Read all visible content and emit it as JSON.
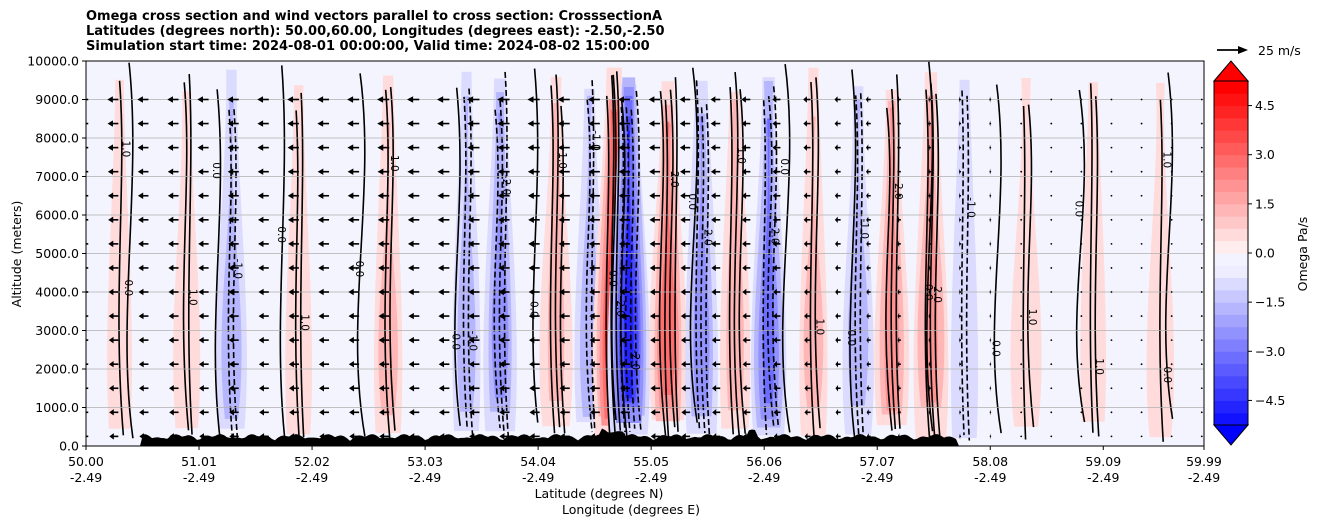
{
  "chart_data": {
    "type": "contour_cross_section",
    "title_lines": [
      "Omega cross section and wind vectors parallel to cross section: CrosssectionA",
      "Latitudes (degrees north): 50.00,60.00, Longitudes (degrees east): -2.50,-2.50",
      "Simulation start time: 2024-08-01 00:00:00, Valid time: 2024-08-02 15:00:00"
    ],
    "ylabel": "Altitude (meters)",
    "xlabel_line1": "Latitude (degrees N)",
    "xlabel_line2": "Longitude (degrees E)",
    "ylim": [
      0,
      10000
    ],
    "y_ticks": [
      0,
      1000,
      2000,
      3000,
      4000,
      5000,
      6000,
      7000,
      8000,
      9000,
      10000
    ],
    "y_tick_labels": [
      "0.0",
      "1000.0",
      "2000.0",
      "3000.0",
      "4000.0",
      "5000.0",
      "6000.0",
      "7000.0",
      "8000.0",
      "9000.0",
      "10000.0"
    ],
    "xlim": [
      50.0,
      59.99
    ],
    "x_ticks": [
      50.0,
      51.01,
      52.02,
      53.03,
      54.04,
      55.05,
      56.06,
      57.07,
      58.08,
      59.09,
      59.99
    ],
    "x_tick_lat_labels": [
      "50.00",
      "51.01",
      "52.02",
      "53.03",
      "54.04",
      "55.05",
      "56.06",
      "57.07",
      "58.08",
      "59.09",
      "59.99"
    ],
    "x_tick_lon_labels": [
      "-2.49",
      "-2.49",
      "-2.49",
      "-2.49",
      "-2.49",
      "-2.49",
      "-2.49",
      "-2.49",
      "-2.49",
      "-2.49",
      "-2.49"
    ],
    "grid": "horizontal",
    "colorbar": {
      "label": "Omega Pa/s",
      "range": [
        -5.25,
        5.25
      ],
      "extend": "both",
      "ticks": [
        -4.5,
        -3.0,
        -1.5,
        0.0,
        1.5,
        3.0,
        4.5
      ],
      "tick_labels": [
        "−4.5",
        "−3.0",
        "−1.5",
        "0.0",
        "1.5",
        "3.0",
        "4.5"
      ],
      "cmap": "bwr"
    },
    "quiver_key": {
      "label": "25 m/s",
      "speed": 25
    },
    "omega_features": [
      {
        "lat": 50.3,
        "omega": 0.4
      },
      {
        "lat": 50.9,
        "omega": 0.6
      },
      {
        "lat": 51.3,
        "omega": -1.5
      },
      {
        "lat": 51.9,
        "omega": 0.8
      },
      {
        "lat": 52.7,
        "omega": 1.3
      },
      {
        "lat": 53.4,
        "omega": -1.2
      },
      {
        "lat": 53.7,
        "omega": -2.4
      },
      {
        "lat": 54.2,
        "omega": 1.8
      },
      {
        "lat": 54.5,
        "omega": -1.6
      },
      {
        "lat": 54.72,
        "omega": 4.5
      },
      {
        "lat": 54.85,
        "omega": -4.5
      },
      {
        "lat": 55.2,
        "omega": 3.0
      },
      {
        "lat": 55.5,
        "omega": -2.5
      },
      {
        "lat": 55.8,
        "omega": 1.8
      },
      {
        "lat": 56.1,
        "omega": -2.7
      },
      {
        "lat": 56.5,
        "omega": 1.2
      },
      {
        "lat": 56.9,
        "omega": -1.5
      },
      {
        "lat": 57.2,
        "omega": 2.4
      },
      {
        "lat": 57.55,
        "omega": 2.6
      },
      {
        "lat": 57.85,
        "omega": -1.1
      },
      {
        "lat": 58.4,
        "omega": 1.0
      },
      {
        "lat": 59.0,
        "omega": 0.7
      },
      {
        "lat": 59.6,
        "omega": 0.4
      }
    ],
    "contour_labels": [
      "0.0",
      "1.0",
      "-1.0",
      "2.0",
      "-2.0"
    ],
    "wind_profile": [
      {
        "lat": 50.0,
        "u": -12
      },
      {
        "lat": 52.0,
        "u": -13
      },
      {
        "lat": 53.5,
        "u": -14
      },
      {
        "lat": 55.0,
        "u": -13
      },
      {
        "lat": 56.5,
        "u": -8
      },
      {
        "lat": 57.5,
        "u": -3
      },
      {
        "lat": 58.5,
        "u": -1
      },
      {
        "lat": 59.99,
        "u": 0
      }
    ]
  }
}
